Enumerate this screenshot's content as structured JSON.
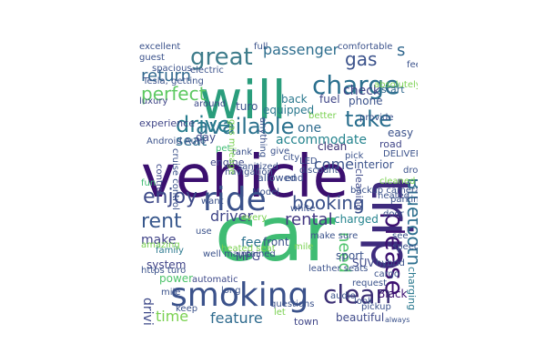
{
  "wordcloud": {
    "words": [
      {
        "text": "vehicle",
        "color": "#3b0f6f"
      },
      {
        "text": "car",
        "color": "#3fbc73"
      },
      {
        "text": "trip",
        "color": "#3e2b7d"
      },
      {
        "text": "will",
        "color": "#2a9d7c"
      },
      {
        "text": "smoking",
        "color": "#3b528b"
      },
      {
        "text": "ride",
        "color": "#3b528b"
      },
      {
        "text": "charge",
        "color": "#2a6f8e"
      },
      {
        "text": "great",
        "color": "#3e7c8b"
      },
      {
        "text": "please",
        "color": "#3b0f6f"
      },
      {
        "text": "available",
        "color": "#2c728e"
      },
      {
        "text": "drive",
        "color": "#287d8e"
      },
      {
        "text": "take",
        "color": "#2a6f8e"
      },
      {
        "text": "clean",
        "color": "#3b2f74"
      },
      {
        "text": "enjoy",
        "color": "#3e4a89"
      },
      {
        "text": "rent",
        "color": "#38588c"
      },
      {
        "text": "booking",
        "color": "#3b528b"
      },
      {
        "text": "Bluetooth",
        "color": "#2d6f8e"
      },
      {
        "text": "perfect",
        "color": "#5ec962"
      },
      {
        "text": "gas",
        "color": "#3b528b"
      },
      {
        "text": "passenger",
        "color": "#2e6e8e"
      },
      {
        "text": "rental",
        "color": "#443983"
      },
      {
        "text": "return",
        "color": "#31688e"
      },
      {
        "text": "need",
        "color": "#4ec36b"
      },
      {
        "text": "time",
        "color": "#7ad151"
      },
      {
        "text": "feature",
        "color": "#2f6b8e"
      },
      {
        "text": "driving",
        "color": "#3e4989"
      },
      {
        "text": "driver",
        "color": "#404688"
      },
      {
        "text": "make",
        "color": "#404387"
      },
      {
        "text": "come",
        "color": "#3b528b"
      },
      {
        "text": "seat",
        "color": "#2f6c8e"
      },
      {
        "text": "one",
        "color": "#2f6c8e"
      },
      {
        "text": "accommodate",
        "color": "#25848e"
      },
      {
        "text": "check",
        "color": "#414487"
      },
      {
        "text": "s",
        "color": "#31688e"
      },
      {
        "text": "fee",
        "color": "#2c728e"
      },
      {
        "text": "MPG",
        "color": "#404688"
      },
      {
        "text": "system",
        "color": "#404387"
      },
      {
        "text": "power",
        "color": "#4ec36b"
      },
      {
        "text": "clean",
        "color": "#3b2f74"
      },
      {
        "text": "day",
        "color": "#3e4a89"
      },
      {
        "text": "fuel",
        "color": "#404688"
      },
      {
        "text": "phone",
        "color": "#3b528b"
      },
      {
        "text": "charged",
        "color": "#25848e"
      },
      {
        "text": "easy",
        "color": "#3b528b"
      },
      {
        "text": "sport",
        "color": "#3b528b"
      },
      {
        "text": "SUV",
        "color": "#3e4989"
      },
      {
        "text": "Black",
        "color": "#3b0f6f"
      },
      {
        "text": "charging",
        "color": "#2a788e"
      },
      {
        "text": "beautiful",
        "color": "#3e4989"
      },
      {
        "text": "town",
        "color": "#404688"
      },
      {
        "text": "interior",
        "color": "#3b528b"
      },
      {
        "text": "front",
        "color": "#3b528b"
      },
      {
        "text": "family",
        "color": "#2a788e"
      },
      {
        "text": "equipped",
        "color": "#2a788e"
      },
      {
        "text": "back",
        "color": "#2a788e"
      },
      {
        "text": "luxury",
        "color": "#404688"
      },
      {
        "text": "around",
        "color": "#3e4989"
      },
      {
        "text": "turo",
        "color": "#3b528b"
      },
      {
        "text": "experience",
        "color": "#404688"
      },
      {
        "text": "engine",
        "color": "#3e4989"
      },
      {
        "text": "allowed",
        "color": "#3b528b"
      },
      {
        "text": "end",
        "color": "#3b528b"
      },
      {
        "text": "road",
        "color": "#404688"
      },
      {
        "text": "start",
        "color": "#31688e"
      },
      {
        "text": "cleaning",
        "color": "#3e4989"
      },
      {
        "text": "make sure",
        "color": "#3b528b"
      },
      {
        "text": "request",
        "color": "#3b528b"
      },
      {
        "text": "audio",
        "color": "#3b528b"
      },
      {
        "text": "questions",
        "color": "#3b528b"
      },
      {
        "text": "automatic",
        "color": "#3e4989"
      },
      {
        "text": "every",
        "color": "#7ad151"
      },
      {
        "text": "white",
        "color": "#3b528b"
      },
      {
        "text": "navigation",
        "color": "#3b528b"
      },
      {
        "text": "control",
        "color": "#3e4989"
      },
      {
        "text": "mile",
        "color": "#3b528b"
      },
      {
        "text": "use",
        "color": "#3b528b"
      },
      {
        "text": "fun",
        "color": "#3fbc73"
      },
      {
        "text": "pet",
        "color": "#3fbc73"
      },
      {
        "text": "tank",
        "color": "#3b528b"
      },
      {
        "text": "Model",
        "color": "#3b528b"
      },
      {
        "text": "give",
        "color": "#3b528b"
      },
      {
        "text": "city",
        "color": "#3b528b"
      },
      {
        "text": "LED",
        "color": "#3b528b"
      },
      {
        "text": "discount",
        "color": "#3b528b"
      },
      {
        "text": "hybrid",
        "color": "#3b528b"
      },
      {
        "text": "speed",
        "color": "#3b528b"
      },
      {
        "text": "pickup",
        "color": "#3b528b"
      },
      {
        "text": "look",
        "color": "#3b528b"
      },
      {
        "text": "always",
        "color": "#3b528b"
      },
      {
        "text": "parking",
        "color": "#3b528b"
      },
      {
        "text": "heated",
        "color": "#3b528b"
      },
      {
        "text": "door",
        "color": "#3b528b"
      },
      {
        "text": "pick",
        "color": "#3b528b"
      },
      {
        "text": "provide",
        "color": "#3b528b"
      },
      {
        "text": "comfortable",
        "color": "#3b528b"
      },
      {
        "text": "feel",
        "color": "#3b528b"
      },
      {
        "text": "excellent",
        "color": "#3b528b"
      },
      {
        "text": "guest",
        "color": "#3b528b"
      },
      {
        "text": "spacious",
        "color": "#3b528b"
      },
      {
        "text": "electric",
        "color": "#3b528b"
      },
      {
        "text": "Tesla, getting",
        "color": "#3b528b"
      },
      {
        "text": "full",
        "color": "#3b528b"
      },
      {
        "text": "long",
        "color": "#3b528b"
      },
      {
        "text": "cruise control",
        "color": "#3b528b"
      },
      {
        "text": "well maintained",
        "color": "#3b528b"
      },
      {
        "text": "leather seats",
        "color": "#3b528b"
      },
      {
        "text": "backup camera",
        "color": "#3b528b"
      },
      {
        "text": "sanitized",
        "color": "#3b528b"
      },
      {
        "text": "Android Auto",
        "color": "#3b528b"
      },
      {
        "text": "DELIVERY",
        "color": "#3b528b"
      },
      {
        "text": "gas mileage",
        "color": "#7ad151"
      },
      {
        "text": "better",
        "color": "#7ad151"
      },
      {
        "text": "want",
        "color": "#3b528b"
      },
      {
        "text": "anything",
        "color": "#3b528b"
      },
      {
        "text": "cleaned",
        "color": "#7ad151"
      },
      {
        "text": "absolutely",
        "color": "#7ad151"
      },
      {
        "text": "heated seat",
        "color": "#7ad151"
      },
      {
        "text": "mile",
        "color": "#7ad151"
      },
      {
        "text": "amazing",
        "color": "#7ad151"
      },
      {
        "text": "let",
        "color": "#7ad151"
      },
      {
        "text": "https turo",
        "color": "#3b528b"
      },
      {
        "text": "keep",
        "color": "#3b528b"
      },
      {
        "text": "drop",
        "color": "#3b528b"
      },
      {
        "text": "see",
        "color": "#3b528b"
      },
      {
        "text": "cargo",
        "color": "#3b528b"
      }
    ]
  }
}
